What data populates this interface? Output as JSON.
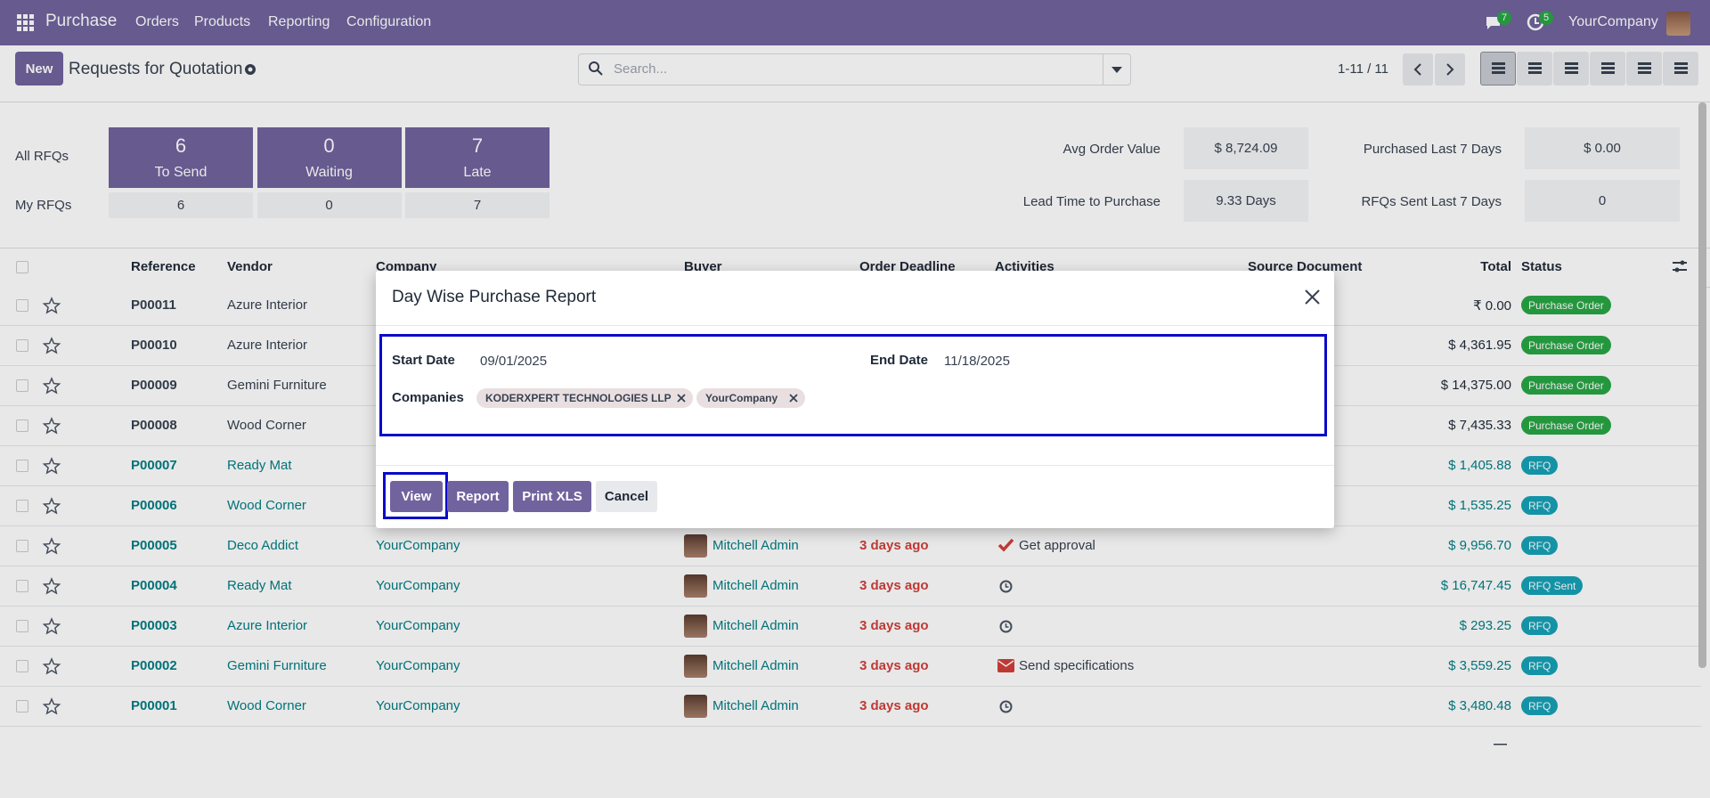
{
  "navbar": {
    "app": "Purchase",
    "menus": [
      "Orders",
      "Products",
      "Reporting",
      "Configuration"
    ],
    "chat_badge": "7",
    "activity_badge": "5",
    "company": "YourCompany"
  },
  "control": {
    "new": "New",
    "title": "Requests for Quotation",
    "search": "Search...",
    "pager": "1-11 / 11"
  },
  "dashboard": {
    "all_label": "All RFQs",
    "my_label": "My RFQs",
    "tiles": [
      {
        "count": "6",
        "label": "To Send",
        "mine": "6"
      },
      {
        "count": "0",
        "label": "Waiting",
        "mine": "0"
      },
      {
        "count": "7",
        "label": "Late",
        "mine": "7"
      }
    ],
    "stats": [
      {
        "label": "Avg Order Value",
        "value": "$ 8,724.09"
      },
      {
        "label": "Purchased Last 7 Days",
        "value": "$ 0.00"
      },
      {
        "label": "Lead Time to Purchase",
        "value": "9.33 Days"
      },
      {
        "label": "RFQs Sent Last 7 Days",
        "value": "0"
      }
    ]
  },
  "table": {
    "headers": [
      "Reference",
      "Vendor",
      "Company",
      "Buyer",
      "Order Deadline",
      "Activities",
      "Source Document",
      "Total",
      "Status"
    ],
    "rows": [
      {
        "ref": "P00011",
        "vendor": "Azure Interior",
        "total": "₹ 0.00",
        "status": "Purchase Order"
      },
      {
        "ref": "P00010",
        "vendor": "Azure Interior",
        "total": "$ 4,361.95",
        "status": "Purchase Order"
      },
      {
        "ref": "P00009",
        "vendor": "Gemini Furniture",
        "total": "$ 14,375.00",
        "status": "Purchase Order"
      },
      {
        "ref": "P00008",
        "vendor": "Wood Corner",
        "total": "$ 7,435.33",
        "status": "Purchase Order"
      },
      {
        "ref": "P00007",
        "vendor": "Ready Mat",
        "total": "$ 1,405.88",
        "status": "RFQ"
      },
      {
        "ref": "P00006",
        "vendor": "Wood Corner",
        "total": "$ 1,535.25",
        "status": "RFQ"
      },
      {
        "ref": "P00005",
        "vendor": "Deco Addict",
        "company": "YourCompany",
        "buyer": "Mitchell Admin",
        "deadline": "3 days ago",
        "activity": "Get approval",
        "total": "$ 9,956.70",
        "status": "RFQ"
      },
      {
        "ref": "P00004",
        "vendor": "Ready Mat",
        "company": "YourCompany",
        "buyer": "Mitchell Admin",
        "deadline": "3 days ago",
        "total": "$ 16,747.45",
        "status": "RFQ Sent"
      },
      {
        "ref": "P00003",
        "vendor": "Azure Interior",
        "company": "YourCompany",
        "buyer": "Mitchell Admin",
        "deadline": "3 days ago",
        "total": "$ 293.25",
        "status": "RFQ"
      },
      {
        "ref": "P00002",
        "vendor": "Gemini Furniture",
        "company": "YourCompany",
        "buyer": "Mitchell Admin",
        "deadline": "3 days ago",
        "activity": "Send specifications",
        "total": "$ 3,559.25",
        "status": "RFQ"
      },
      {
        "ref": "P00001",
        "vendor": "Wood Corner",
        "company": "YourCompany",
        "buyer": "Mitchell Admin",
        "deadline": "3 days ago",
        "total": "$ 3,480.48",
        "status": "RFQ"
      }
    ],
    "footer_total": "—"
  },
  "modal": {
    "title": "Day Wise Purchase Report",
    "start_label": "Start Date",
    "start": "09/01/2025",
    "end_label": "End Date",
    "end": "11/18/2025",
    "companies_label": "Companies",
    "tags": [
      "KODERXPERT TECHNOLOGIES LLP",
      "YourCompany"
    ],
    "buttons": [
      "View",
      "Report",
      "Print XLS",
      "Cancel"
    ]
  }
}
